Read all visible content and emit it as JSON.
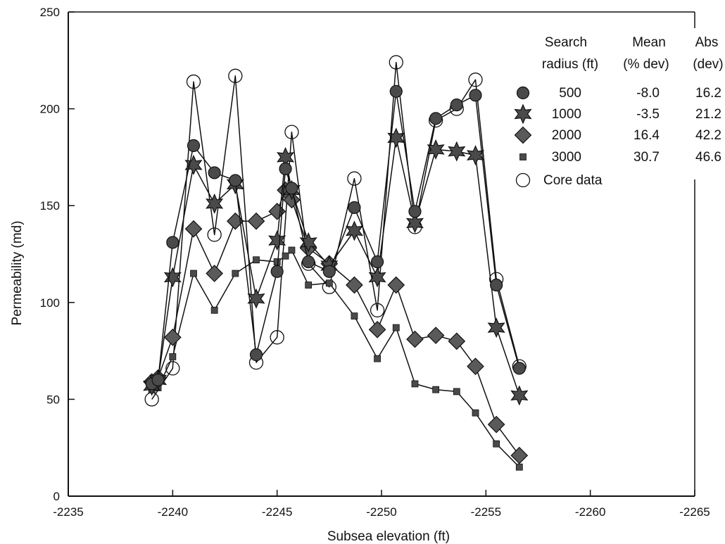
{
  "chart_data": {
    "type": "line",
    "title": "",
    "xlabel": "Subsea elevation (ft)",
    "ylabel": "Permeability (md)",
    "xlim": [
      -2235,
      -2265
    ],
    "ylim": [
      0,
      250
    ],
    "x_ticks": [
      -2235,
      -2240,
      -2245,
      -2250,
      -2255,
      -2260,
      -2265
    ],
    "y_ticks": [
      0,
      50,
      100,
      150,
      200,
      250
    ],
    "x_tick_labels": [
      "-2235",
      "-2240",
      "-2245",
      "-2250",
      "-2255",
      "-2260",
      "-2265"
    ],
    "y_tick_labels": [
      "0",
      "50",
      "100",
      "150",
      "200",
      "250"
    ],
    "grid": false,
    "legend_placement": "top-right",
    "legend": {
      "headers": {
        "col1": [
          "Search",
          "radius (ft)"
        ],
        "col2": [
          "Mean",
          "(% dev)"
        ],
        "col3": [
          "Abs",
          "(dev)"
        ]
      },
      "rows": [
        {
          "radius": "500",
          "mean": "-8.0",
          "abs": "16.2"
        },
        {
          "radius": "1000",
          "mean": "-3.5",
          "abs": "21.2"
        },
        {
          "radius": "2000",
          "mean": "16.4",
          "abs": "42.2"
        },
        {
          "radius": "3000",
          "mean": "30.7",
          "abs": "46.6"
        }
      ],
      "core_label": "Core data"
    },
    "series": [
      {
        "name": "500",
        "marker": "circle",
        "x": [
          -2239.0,
          -2239.3,
          -2240.0,
          -2241.0,
          -2242.0,
          -2243.0,
          -2244.0,
          -2245.0,
          -2245.4,
          -2245.7,
          -2246.5,
          -2247.5,
          -2248.7,
          -2249.8,
          -2250.7,
          -2251.6,
          -2252.6,
          -2253.6,
          -2254.5,
          -2255.5,
          -2256.6
        ],
        "y": [
          58,
          60,
          131,
          181,
          167,
          163,
          73,
          116,
          169,
          159,
          121,
          116,
          149,
          121,
          209,
          147,
          195,
          202,
          207,
          109,
          66
        ]
      },
      {
        "name": "1000",
        "marker": "star",
        "x": [
          -2239.0,
          -2239.3,
          -2240.0,
          -2241.0,
          -2242.0,
          -2243.0,
          -2244.0,
          -2245.0,
          -2245.4,
          -2245.7,
          -2246.5,
          -2247.5,
          -2248.7,
          -2249.8,
          -2250.7,
          -2251.6,
          -2252.6,
          -2253.6,
          -2254.5,
          -2255.5,
          -2256.6
        ],
        "y": [
          57,
          60,
          113,
          171,
          151,
          161,
          102,
          132,
          175,
          158,
          131,
          119,
          137,
          113,
          185,
          141,
          179,
          178,
          176,
          87,
          52
        ]
      },
      {
        "name": "2000",
        "marker": "diamond",
        "x": [
          -2239.0,
          -2239.3,
          -2240.0,
          -2241.0,
          -2242.0,
          -2243.0,
          -2244.0,
          -2245.0,
          -2245.4,
          -2245.7,
          -2246.5,
          -2247.5,
          -2248.7,
          -2249.8,
          -2250.7,
          -2251.6,
          -2252.6,
          -2253.6,
          -2254.5,
          -2255.5,
          -2256.6
        ],
        "y": [
          59,
          61,
          82,
          138,
          115,
          142,
          142,
          147,
          158,
          153,
          128,
          120,
          109,
          86,
          109,
          81,
          83,
          80,
          67,
          37,
          21
        ]
      },
      {
        "name": "3000",
        "marker": "square",
        "x": [
          -2239.0,
          -2239.3,
          -2240.0,
          -2241.0,
          -2242.0,
          -2243.0,
          -2244.0,
          -2245.0,
          -2245.4,
          -2245.7,
          -2246.5,
          -2247.5,
          -2248.7,
          -2249.8,
          -2250.7,
          -2251.6,
          -2252.6,
          -2253.6,
          -2254.5,
          -2255.5,
          -2256.6
        ],
        "y": [
          55,
          56,
          72,
          115,
          96,
          115,
          122,
          121,
          124,
          127,
          109,
          110,
          93,
          71,
          87,
          58,
          55,
          54,
          43,
          27,
          15
        ]
      },
      {
        "name": "Core data",
        "marker": "open-circle",
        "x": [
          -2239.0,
          -2240.0,
          -2241.0,
          -2242.0,
          -2243.0,
          -2244.0,
          -2245.0,
          -2245.7,
          -2246.5,
          -2247.5,
          -2248.7,
          -2249.8,
          -2250.7,
          -2251.6,
          -2252.6,
          -2253.6,
          -2254.5,
          -2255.5,
          -2256.6
        ],
        "y": [
          50,
          66,
          214,
          135,
          217,
          69,
          82,
          188,
          120,
          108,
          164,
          96,
          224,
          139,
          194,
          200,
          215,
          112,
          67
        ]
      }
    ]
  },
  "colors": {
    "background": "#ffffff",
    "ink": "#111111",
    "marker_fill": "#4a4a4a",
    "marker_fill_light": "#5a5a5a"
  }
}
